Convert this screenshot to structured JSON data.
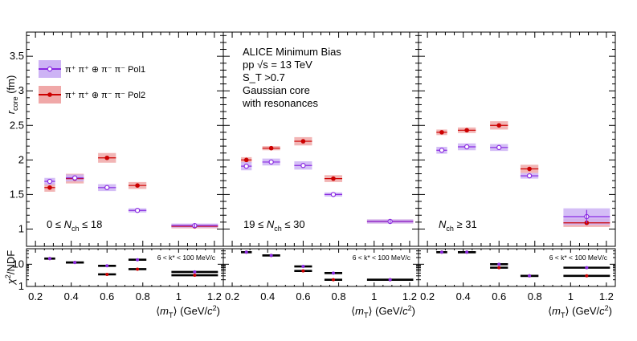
{
  "chart_data": {
    "type": "scatter",
    "x_axis": {
      "label": "⟨m_T⟩ (GeV/c²)",
      "range": [
        0.15,
        1.25
      ],
      "ticks": [
        "0.2",
        "0.4",
        "0.6",
        "0.8",
        "1",
        "1.2"
      ]
    },
    "y_axis": {
      "label": "r_core (fm)",
      "range": [
        0.75,
        3.85
      ],
      "ticks": [
        "1",
        "1.5",
        "2",
        "2.5",
        "3",
        "3.5"
      ]
    },
    "ratio_axis": {
      "label": "χ²/NDF",
      "scale": "log",
      "range": [
        1,
        50
      ],
      "ticks": [
        "1",
        "10"
      ]
    },
    "legend": [
      {
        "name": "Pol1",
        "label": "π⁺ π⁺ ⊕ π⁻ π⁻ Pol1",
        "color": "#8a2be2",
        "band": "#cdb3f5"
      },
      {
        "name": "Pol2",
        "label": "π⁺ π⁺ ⊕ π⁻ π⁻ Pol2",
        "color": "#cc0000",
        "band": "#f0a8a8"
      }
    ],
    "info_lines": [
      "ALICE Minimum Bias",
      "pp √s = 13 TeV",
      "S_T >0.7",
      "Gaussian core",
      "with resonances"
    ],
    "kstar_note": "6 < k* < 100 MeV/c",
    "panels": [
      {
        "multiplicity": "0 ≤ N_ch ≤ 18",
        "series": [
          {
            "name": "Pol1",
            "x": [
              0.28,
              0.42,
              0.6,
              0.77,
              1.09
            ],
            "y": [
              1.69,
              1.74,
              1.6,
              1.27,
              1.05
            ],
            "sys": [
              0.05,
              0.05,
              0.05,
              0.03,
              0.03
            ],
            "xerr": [
              0.03,
              0.05,
              0.05,
              0.05,
              0.13
            ]
          },
          {
            "name": "Pol2",
            "x": [
              0.28,
              0.42,
              0.6,
              0.77,
              1.09
            ],
            "y": [
              1.6,
              1.73,
              2.03,
              1.63,
              1.04
            ],
            "sys": [
              0.06,
              0.07,
              0.07,
              0.05,
              0.03
            ],
            "xerr": [
              0.03,
              0.05,
              0.05,
              0.05,
              0.13
            ]
          }
        ],
        "chi2": [
          {
            "name": "Pol1",
            "x": [
              0.28,
              0.42,
              0.6,
              0.77,
              1.09
            ],
            "y": [
              18,
              12,
              8.5,
              16,
              4.5
            ]
          },
          {
            "name": "Pol2",
            "x": [
              0.28,
              0.42,
              0.6,
              0.77,
              1.09
            ],
            "y": [
              18,
              12,
              3.5,
              6,
              3.2
            ]
          }
        ]
      },
      {
        "multiplicity": "19 ≤ N_ch ≤ 30",
        "series": [
          {
            "name": "Pol1",
            "x": [
              0.28,
              0.42,
              0.6,
              0.77,
              1.09
            ],
            "y": [
              1.91,
              1.97,
              1.92,
              1.5,
              1.11
            ],
            "sys": [
              0.06,
              0.05,
              0.06,
              0.03,
              0.03
            ],
            "xerr": [
              0.03,
              0.05,
              0.05,
              0.05,
              0.13
            ]
          },
          {
            "name": "Pol2",
            "x": [
              0.28,
              0.42,
              0.6,
              0.77,
              1.09
            ],
            "y": [
              2.0,
              2.17,
              2.27,
              1.73,
              1.11
            ],
            "sys": [
              0.04,
              0.03,
              0.06,
              0.05,
              0.03
            ],
            "xerr": [
              0.03,
              0.05,
              0.05,
              0.05,
              0.13
            ]
          }
        ],
        "chi2": [
          {
            "name": "Pol1",
            "x": [
              0.28,
              0.42,
              0.6,
              0.77,
              1.09
            ],
            "y": [
              35,
              25,
              8,
              4,
              2
            ]
          },
          {
            "name": "Pol2",
            "x": [
              0.28,
              0.42,
              0.6,
              0.77,
              1.09
            ],
            "y": [
              35,
              25,
              5,
              2,
              2
            ]
          }
        ]
      },
      {
        "multiplicity": "N_ch ≥ 31",
        "series": [
          {
            "name": "Pol1",
            "x": [
              0.28,
              0.42,
              0.6,
              0.77,
              1.09
            ],
            "y": [
              2.14,
              2.19,
              2.18,
              1.77,
              1.18
            ],
            "sys": [
              0.05,
              0.05,
              0.05,
              0.04,
              0.12
            ],
            "xerr": [
              0.03,
              0.05,
              0.05,
              0.05,
              0.13
            ]
          },
          {
            "name": "Pol2",
            "x": [
              0.28,
              0.42,
              0.6,
              0.77,
              1.09
            ],
            "y": [
              2.4,
              2.43,
              2.5,
              1.87,
              1.09
            ],
            "sys": [
              0.04,
              0.04,
              0.06,
              0.06,
              0.06
            ],
            "xerr": [
              0.03,
              0.05,
              0.05,
              0.05,
              0.13
            ]
          }
        ],
        "chi2": [
          {
            "name": "Pol1",
            "x": [
              0.28,
              0.42,
              0.6,
              0.77,
              1.09
            ],
            "y": [
              35,
              35,
              10,
              3,
              7
            ]
          },
          {
            "name": "Pol2",
            "x": [
              0.28,
              0.42,
              0.6,
              0.77,
              1.09
            ],
            "y": [
              35,
              35,
              7,
              3,
              3
            ]
          }
        ]
      }
    ]
  }
}
